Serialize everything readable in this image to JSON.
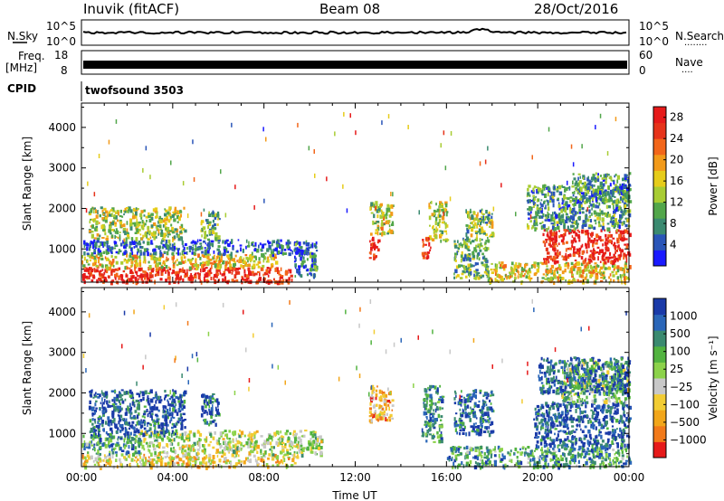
{
  "header": {
    "station": "Inuvik (fitACF)",
    "beam": "Beam 08",
    "date": "28/Oct/2016"
  },
  "strip_labels": {
    "nsky": "N.Sky",
    "nsearch": "N.Search",
    "nsearch_dots": "........",
    "freq_top": "Freq.",
    "freq_unit": "[MHz]",
    "nave": "Nave",
    "nave_dots": "....",
    "cpid": "CPID",
    "cpid_value": "twofsound 3503",
    "noise_left_top": "10^5",
    "noise_left_bottom": "10^0",
    "noise_right_top": "10^5",
    "noise_right_bottom": "10^0",
    "freq_left_top": "18",
    "freq_left_bottom": "8",
    "nave_right_top": "60",
    "nave_right_bottom": "0"
  },
  "colors": {
    "power_scale": [
      "#1a1aff",
      "#2a55b8",
      "#3b8a70",
      "#52a64a",
      "#a8cc33",
      "#e6cc1a",
      "#f29a1a",
      "#f2661a",
      "#e6331a",
      "#e61a1a"
    ],
    "velocity_scale": [
      "#1a3aa8",
      "#2a66b8",
      "#3b8a70",
      "#52b340",
      "#8cd24a",
      "#c8c8c8",
      "#f2cc33",
      "#f2a61a",
      "#f27a1a",
      "#e61a1a"
    ]
  },
  "chart_data": [
    {
      "type": "heatmap",
      "name": "power",
      "xlabel": "",
      "ylabel": "Slant Range [km]",
      "x_ticks": [
        "00:00",
        "04:00",
        "08:00",
        "12:00",
        "16:00",
        "20:00",
        "00:00"
      ],
      "xlim_hours": [
        0,
        24
      ],
      "y_ticks": [
        1000,
        2000,
        3000,
        4000
      ],
      "ylim": [
        180,
        4600
      ],
      "colorbar": {
        "label": "Power [dB]",
        "ticks": [
          4,
          8,
          12,
          16,
          20,
          24,
          28
        ],
        "range": [
          0,
          30
        ]
      },
      "echo_regions": [
        {
          "t0": 0.0,
          "t1": 9.2,
          "r0": 200,
          "r1": 560,
          "level": 0.92
        },
        {
          "t0": 0.0,
          "t1": 8.5,
          "r0": 560,
          "r1": 900,
          "level": 0.55
        },
        {
          "t0": 0.0,
          "t1": 10.2,
          "r0": 900,
          "r1": 1250,
          "level": 0.18
        },
        {
          "t0": 0.3,
          "t1": 4.5,
          "r0": 1250,
          "r1": 2050,
          "level": 0.45
        },
        {
          "t0": 5.2,
          "t1": 6.0,
          "r0": 1250,
          "r1": 2000,
          "level": 0.35
        },
        {
          "t0": 9.3,
          "t1": 10.3,
          "r0": 350,
          "r1": 1200,
          "level": 0.2
        },
        {
          "t0": 12.6,
          "t1": 13.6,
          "r0": 1400,
          "r1": 2200,
          "level": 0.5
        },
        {
          "t0": 12.6,
          "t1": 13.0,
          "r0": 800,
          "r1": 1300,
          "level": 0.95
        },
        {
          "t0": 15.2,
          "t1": 16.0,
          "r0": 1200,
          "r1": 2200,
          "level": 0.45
        },
        {
          "t0": 14.9,
          "t1": 15.3,
          "r0": 800,
          "r1": 1300,
          "level": 0.9
        },
        {
          "t0": 16.3,
          "t1": 17.8,
          "r0": 300,
          "r1": 1300,
          "level": 0.35
        },
        {
          "t0": 16.8,
          "t1": 18.0,
          "r0": 1300,
          "r1": 2000,
          "level": 0.4
        },
        {
          "t0": 17.8,
          "t1": 24.0,
          "r0": 200,
          "r1": 700,
          "level": 0.55
        },
        {
          "t0": 20.2,
          "t1": 24.0,
          "r0": 700,
          "r1": 1500,
          "level": 0.93
        },
        {
          "t0": 19.5,
          "t1": 24.0,
          "r0": 1500,
          "r1": 2600,
          "level": 0.3
        },
        {
          "t0": 21.5,
          "t1": 24.0,
          "r0": 2200,
          "r1": 2900,
          "level": 0.25
        }
      ]
    },
    {
      "type": "heatmap",
      "name": "velocity",
      "xlabel": "Time UT",
      "ylabel": "Slant Range [km]",
      "x_ticks": [
        "00:00",
        "04:00",
        "08:00",
        "12:00",
        "16:00",
        "20:00",
        "00:00"
      ],
      "xlim_hours": [
        0,
        24
      ],
      "y_ticks": [
        1000,
        2000,
        3000,
        4000
      ],
      "ylim": [
        180,
        4600
      ],
      "colorbar": {
        "label": "Velocity [m s⁻¹]",
        "ticks": [
          "1000",
          "500",
          "100",
          "25",
          "−25",
          "−100",
          "−500",
          "−1000"
        ],
        "range": [
          -1200,
          1200
        ]
      },
      "echo_regions": [
        {
          "t0": 0.0,
          "t1": 9.5,
          "r0": 200,
          "r1": 500,
          "level": 0.62
        },
        {
          "t0": 2.5,
          "t1": 10.5,
          "r0": 500,
          "r1": 1100,
          "level": 0.5
        },
        {
          "t0": 0.0,
          "t1": 2.5,
          "r0": 500,
          "r1": 1000,
          "level": 0.3
        },
        {
          "t0": 0.3,
          "t1": 4.5,
          "r0": 1000,
          "r1": 2100,
          "level": 0.12
        },
        {
          "t0": 5.2,
          "t1": 6.0,
          "r0": 1250,
          "r1": 2000,
          "level": 0.15
        },
        {
          "t0": 12.6,
          "t1": 13.6,
          "r0": 1300,
          "r1": 2200,
          "level": 0.7
        },
        {
          "t0": 14.9,
          "t1": 15.8,
          "r0": 800,
          "r1": 2200,
          "level": 0.25
        },
        {
          "t0": 16.3,
          "t1": 18.0,
          "r0": 1000,
          "r1": 2100,
          "level": 0.15
        },
        {
          "t0": 16.0,
          "t1": 24.0,
          "r0": 200,
          "r1": 700,
          "level": 0.3
        },
        {
          "t0": 19.8,
          "t1": 24.0,
          "r0": 700,
          "r1": 1800,
          "level": 0.1
        },
        {
          "t0": 21.0,
          "t1": 24.0,
          "r0": 1800,
          "r1": 2800,
          "level": 0.45
        },
        {
          "t0": 20.0,
          "t1": 24.0,
          "r0": 2000,
          "r1": 2900,
          "level": 0.15
        }
      ]
    }
  ]
}
